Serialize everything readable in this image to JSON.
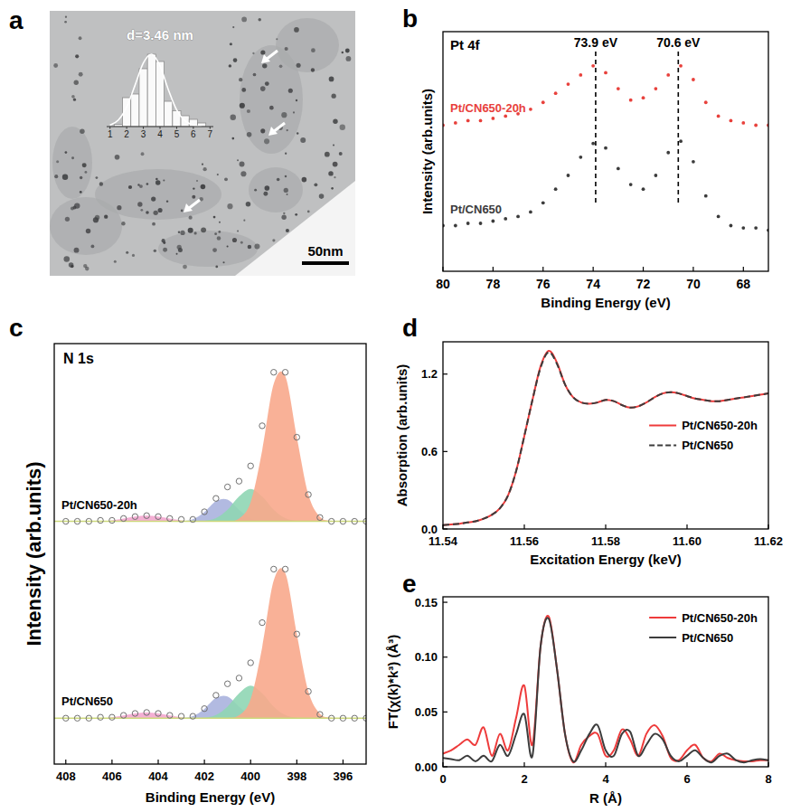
{
  "chart_data": [
    {
      "panel": "a",
      "type": "histogram",
      "annotations": [
        "d=3.46 nm",
        "50nm"
      ],
      "bins": [
        1.25,
        1.75,
        2.25,
        2.75,
        3.25,
        3.75,
        4.25,
        4.75,
        5.25,
        5.75,
        6.25,
        6.75
      ],
      "counts": [
        3,
        40,
        45,
        80,
        100,
        90,
        35,
        22,
        15,
        10,
        5
      ],
      "color": "#ffffff",
      "fit": {
        "x": [
          1,
          1.5,
          2,
          2.5,
          3,
          3.5,
          4,
          4.5,
          5,
          5.5,
          6,
          6.5
        ],
        "values": [
          2,
          9,
          27,
          57,
          88,
          100,
          84,
          51,
          23,
          8,
          2,
          0
        ]
      },
      "xlim": [
        0.8,
        7.2
      ],
      "xticks": [
        1,
        2,
        3,
        4,
        5,
        6,
        7
      ],
      "ylim": [
        0,
        110
      ],
      "tick_labels": "x"
    },
    {
      "panel": "b",
      "type": "scatter",
      "annotations": [
        "Pt 4f"
      ],
      "reference_lines": [
        {
          "value": 73.9,
          "label": "73.9 eV"
        },
        {
          "value": 70.6,
          "label": "70.6 eV"
        }
      ],
      "x_label": "Binding Energy (eV)",
      "y_label": "Intensity (arb.units)",
      "x": [
        80,
        79.5,
        79,
        78.5,
        78,
        77.5,
        77,
        76.5,
        76,
        75.5,
        75,
        74.5,
        74,
        73.5,
        73,
        72.5,
        72,
        71.5,
        71,
        70.5,
        70,
        69.5,
        69,
        68.5,
        68,
        67.5,
        67
      ],
      "series": [
        {
          "name": "Pt/CN650-20h",
          "color": "#e8413c",
          "marker": "dot",
          "values": [
            0.64,
            0.65,
            0.66,
            0.66,
            0.67,
            0.68,
            0.69,
            0.71,
            0.74,
            0.78,
            0.82,
            0.86,
            0.9,
            0.87,
            0.8,
            0.75,
            0.76,
            0.8,
            0.86,
            0.9,
            0.84,
            0.74,
            0.68,
            0.66,
            0.65,
            0.64,
            0.64
          ]
        },
        {
          "name": "Pt/CN650",
          "color": "#3c3c3c",
          "marker": "dot",
          "values": [
            0.2,
            0.2,
            0.21,
            0.21,
            0.22,
            0.23,
            0.24,
            0.26,
            0.3,
            0.36,
            0.42,
            0.5,
            0.56,
            0.54,
            0.45,
            0.38,
            0.36,
            0.42,
            0.52,
            0.57,
            0.48,
            0.33,
            0.24,
            0.2,
            0.19,
            0.19,
            0.18
          ]
        }
      ],
      "xlim": [
        80,
        67
      ],
      "xticks": [
        80,
        78,
        76,
        74,
        72,
        70,
        68
      ],
      "ylim": [
        0,
        1.05
      ],
      "tick_labels": "x"
    },
    {
      "panel": "c",
      "type": "area",
      "annotations": [
        "N 1s"
      ],
      "x_label": "Binding Energy (eV)",
      "y_label": "Intensity (arb.units)",
      "x": [
        408,
        407.5,
        407,
        406.5,
        406,
        405.5,
        405,
        404.5,
        404,
        403.5,
        403,
        402.5,
        402,
        401.5,
        401,
        400.5,
        400,
        399.5,
        399,
        398.5,
        398,
        397.5,
        397,
        396.5,
        396,
        395.5,
        395
      ],
      "series": [
        {
          "name": "Pt/CN650-20h",
          "color": "#707070",
          "marker": "open-circle",
          "baseline": 1.27,
          "values": [
            1.27,
            1.27,
            1.27,
            1.275,
            1.275,
            1.285,
            1.295,
            1.3,
            1.295,
            1.285,
            1.28,
            1.28,
            1.32,
            1.39,
            1.45,
            1.48,
            1.56,
            1.77,
            2.05,
            2.05,
            1.71,
            1.41,
            1.29,
            1.27,
            1.27,
            1.27,
            1.27
          ],
          "components": [
            {
              "color": "#f3a6cf",
              "values": [
                0,
                0,
                0,
                0,
                0.005,
                0.014,
                0.025,
                0.03,
                0.025,
                0.014,
                0.005,
                0,
                0,
                0,
                0,
                0,
                0,
                0,
                0,
                0,
                0,
                0,
                0,
                0,
                0,
                0,
                0
              ]
            },
            {
              "color": "#aab2de",
              "values": [
                0,
                0,
                0,
                0,
                0,
                0,
                0,
                0,
                0,
                0,
                0.001,
                0.011,
                0.049,
                0.106,
                0.114,
                0.061,
                0.016,
                0.002,
                0,
                0,
                0,
                0,
                0,
                0,
                0,
                0,
                0
              ]
            },
            {
              "color": "#8fd6b4",
              "values": [
                0,
                0,
                0,
                0,
                0,
                0,
                0,
                0,
                0,
                0,
                0,
                0,
                0.003,
                0.017,
                0.061,
                0.13,
                0.17,
                0.13,
                0.061,
                0.017,
                0.003,
                0,
                0,
                0,
                0,
                0,
                0
              ]
            },
            {
              "color": "#f8a88c",
              "values": [
                0,
                0,
                0,
                0,
                0,
                0,
                0,
                0,
                0,
                0,
                0,
                0,
                0,
                0,
                0.001,
                0.015,
                0.1,
                0.37,
                0.72,
                0.76,
                0.44,
                0.14,
                0.024,
                0.002,
                0,
                0,
                0
              ]
            }
          ]
        },
        {
          "name": "Pt/CN650",
          "color": "#707070",
          "marker": "open-circle",
          "baseline": 0.24,
          "values": [
            0.24,
            0.24,
            0.24,
            0.245,
            0.245,
            0.255,
            0.265,
            0.27,
            0.265,
            0.255,
            0.25,
            0.25,
            0.29,
            0.36,
            0.42,
            0.45,
            0.53,
            0.74,
            1.02,
            1.02,
            0.68,
            0.38,
            0.26,
            0.24,
            0.24,
            0.24,
            0.24
          ],
          "components": [
            {
              "color": "#f3a6cf",
              "values": [
                0,
                0,
                0,
                0,
                0.005,
                0.014,
                0.025,
                0.03,
                0.025,
                0.014,
                0.005,
                0,
                0,
                0,
                0,
                0,
                0,
                0,
                0,
                0,
                0,
                0,
                0,
                0,
                0,
                0,
                0
              ]
            },
            {
              "color": "#aab2de",
              "values": [
                0,
                0,
                0,
                0,
                0,
                0,
                0,
                0,
                0,
                0,
                0.001,
                0.011,
                0.049,
                0.106,
                0.114,
                0.061,
                0.016,
                0.002,
                0,
                0,
                0,
                0,
                0,
                0,
                0,
                0,
                0
              ]
            },
            {
              "color": "#8fd6b4",
              "values": [
                0,
                0,
                0,
                0,
                0,
                0,
                0,
                0,
                0,
                0,
                0,
                0,
                0.003,
                0.017,
                0.061,
                0.13,
                0.17,
                0.13,
                0.061,
                0.017,
                0.003,
                0,
                0,
                0,
                0,
                0,
                0
              ]
            },
            {
              "color": "#f8a88c",
              "values": [
                0,
                0,
                0,
                0,
                0,
                0,
                0,
                0,
                0,
                0,
                0,
                0,
                0,
                0,
                0.001,
                0.015,
                0.1,
                0.37,
                0.72,
                0.76,
                0.44,
                0.14,
                0.024,
                0.002,
                0,
                0,
                0
              ]
            }
          ]
        }
      ],
      "xlim": [
        408.5,
        395
      ],
      "xticks": [
        408,
        406,
        404,
        402,
        400,
        398,
        396
      ],
      "ylim": [
        0,
        2.2
      ],
      "tick_labels": "x"
    },
    {
      "panel": "d",
      "type": "line",
      "x_label": "Excitation Energy (keV)",
      "y_label": "Absorption (arb.units)",
      "x": [
        11.54,
        11.542,
        11.544,
        11.546,
        11.548,
        11.55,
        11.552,
        11.554,
        11.556,
        11.558,
        11.56,
        11.562,
        11.564,
        11.566,
        11.568,
        11.57,
        11.572,
        11.574,
        11.576,
        11.578,
        11.58,
        11.582,
        11.584,
        11.586,
        11.588,
        11.59,
        11.592,
        11.594,
        11.596,
        11.598,
        11.6,
        11.602,
        11.604,
        11.606,
        11.608,
        11.61,
        11.612,
        11.614,
        11.616,
        11.618,
        11.62
      ],
      "series": [
        {
          "name": "Pt/CN650-20h",
          "color": "#ee3b3b",
          "line_style": "solid",
          "values": [
            0.03,
            0.035,
            0.04,
            0.05,
            0.06,
            0.08,
            0.11,
            0.16,
            0.26,
            0.45,
            0.72,
            1.0,
            1.26,
            1.38,
            1.29,
            1.12,
            1.02,
            0.98,
            0.97,
            0.98,
            1.0,
            0.99,
            0.96,
            0.94,
            0.95,
            0.98,
            1.02,
            1.05,
            1.06,
            1.05,
            1.03,
            1.01,
            1.0,
            0.99,
            0.99,
            1.0,
            1.01,
            1.02,
            1.03,
            1.04,
            1.05
          ]
        },
        {
          "name": "Pt/CN650",
          "color": "#3c3c3c",
          "line_style": "dashed",
          "values": [
            0.03,
            0.035,
            0.04,
            0.05,
            0.06,
            0.08,
            0.11,
            0.16,
            0.26,
            0.45,
            0.72,
            1.0,
            1.25,
            1.37,
            1.28,
            1.12,
            1.02,
            0.98,
            0.97,
            0.98,
            1.0,
            0.99,
            0.96,
            0.94,
            0.95,
            0.98,
            1.02,
            1.05,
            1.06,
            1.05,
            1.03,
            1.01,
            1.0,
            0.99,
            0.99,
            1.0,
            1.01,
            1.02,
            1.03,
            1.04,
            1.05
          ]
        }
      ],
      "xlim": [
        11.54,
        11.62
      ],
      "xticks": [
        11.54,
        11.56,
        11.58,
        {
          "value": 11.6,
          "label": "11.60"
        },
        11.62
      ],
      "ylim": [
        0,
        1.45
      ],
      "yticks": [
        {
          "value": 0,
          "label": "0.0"
        },
        0.6,
        1.2
      ],
      "legend": "center right"
    },
    {
      "panel": "e",
      "type": "line",
      "x_label": "R (Å)",
      "y_label": "FT(χ(k)*k³)  (Å³)",
      "x": [
        0,
        0.2,
        0.4,
        0.6,
        0.8,
        1,
        1.2,
        1.4,
        1.6,
        1.8,
        2,
        2.2,
        2.4,
        2.6,
        2.8,
        3,
        3.2,
        3.4,
        3.6,
        3.8,
        4,
        4.2,
        4.4,
        4.6,
        4.8,
        5,
        5.2,
        5.4,
        5.6,
        5.8,
        6,
        6.2,
        6.4,
        6.6,
        6.8,
        7,
        7.2,
        7.4,
        7.6,
        7.8,
        8
      ],
      "series": [
        {
          "name": "Pt/CN650-20h",
          "color": "#ee3b3b",
          "line_style": "solid",
          "values": [
            0.012,
            0.015,
            0.02,
            0.025,
            0.02,
            0.036,
            0.01,
            0.03,
            0.015,
            0.045,
            0.074,
            0.02,
            0.11,
            0.137,
            0.09,
            0.03,
            0.004,
            0.02,
            0.028,
            0.03,
            0.01,
            0.015,
            0.034,
            0.025,
            0.01,
            0.03,
            0.038,
            0.028,
            0.008,
            0.006,
            0.015,
            0.02,
            0.008,
            0.005,
            0.012,
            0.008,
            0.006,
            0.005,
            0.005,
            0.006,
            0.006
          ]
        },
        {
          "name": "Pt/CN650",
          "color": "#3c3c3c",
          "line_style": "solid",
          "values": [
            0.008,
            0.007,
            0.006,
            0.01,
            0.005,
            0.01,
            0.005,
            0.02,
            0.01,
            0.03,
            0.048,
            0.01,
            0.11,
            0.135,
            0.09,
            0.03,
            0.005,
            0.015,
            0.03,
            0.038,
            0.015,
            0.01,
            0.03,
            0.032,
            0.01,
            0.02,
            0.03,
            0.025,
            0.01,
            0.005,
            0.01,
            0.015,
            0.008,
            0.004,
            0.01,
            0.012,
            0.006,
            0.004,
            0.006,
            0.007,
            0.006
          ]
        }
      ],
      "xlim": [
        0,
        8
      ],
      "xticks": [
        0,
        2,
        4,
        6,
        8
      ],
      "ylim": [
        0,
        0.155
      ],
      "yticks": [
        {
          "value": 0,
          "label": "0.00"
        },
        0.05,
        {
          "value": 0.1,
          "label": "0.10"
        },
        0.15
      ],
      "legend": "upper right"
    }
  ]
}
